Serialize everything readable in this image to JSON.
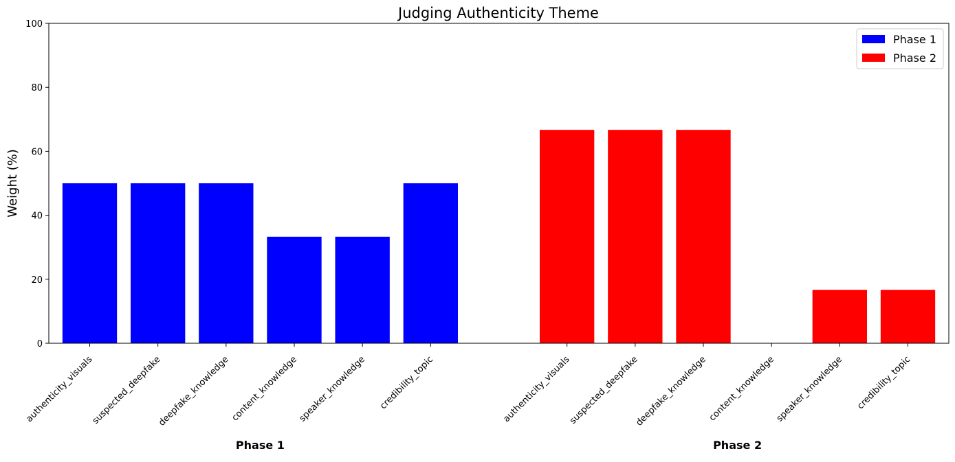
{
  "chart_data": {
    "type": "bar",
    "title": "Judging Authenticity Theme",
    "xlabel": "",
    "ylabel": "Weight (%)",
    "ylim": [
      0,
      100
    ],
    "yticks": [
      "0",
      "20",
      "40",
      "60",
      "80",
      "100"
    ],
    "grid": false,
    "legend_position": "top-right",
    "categories": [
      "authenticity_visuals",
      "suspected_deepfake",
      "deepfake_knowledge",
      "content_knowledge",
      "speaker_knowledge",
      "credibility_topic"
    ],
    "series": [
      {
        "name": "Phase 1",
        "group_label": "Phase 1",
        "color": "#0000ff",
        "values": [
          50,
          50,
          50,
          33.3,
          33.3,
          50
        ]
      },
      {
        "name": "Phase 2",
        "group_label": "Phase 2",
        "color": "#ff0000",
        "values": [
          66.7,
          66.7,
          66.7,
          0,
          16.7,
          16.7
        ]
      }
    ]
  }
}
